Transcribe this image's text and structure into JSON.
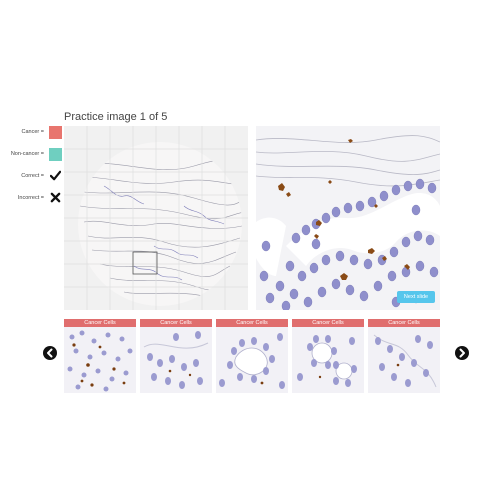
{
  "header": {
    "title": "Practice image 1 of 5"
  },
  "legend": {
    "cancer": {
      "label": "Cancer =",
      "color": "#e8756e",
      "icon": "cancer-swatch"
    },
    "non_cancer": {
      "label": "Non-cancer =",
      "color": "#6fcfc0",
      "icon": "non-cancer-swatch"
    },
    "correct": {
      "label": "Correct =",
      "icon": "checkmark-icon"
    },
    "incorrect": {
      "label": "Incorrect =",
      "icon": "cross-icon"
    }
  },
  "viewer": {
    "next_slide_label": "Next slide"
  },
  "thumbnails": [
    {
      "label": "Cancer Cells"
    },
    {
      "label": "Cancer Cells"
    },
    {
      "label": "Cancer Cells"
    },
    {
      "label": "Cancer Cells"
    },
    {
      "label": "Cancer Cells"
    }
  ],
  "navigation": {
    "prev_icon": "chevron-left-icon",
    "next_icon": "chevron-right-icon"
  },
  "colors": {
    "header_red": "#e06e6e",
    "button_blue": "#56c6ec",
    "stain_brown": "#8a4b16",
    "nuclei_blue": "#8f8fcc"
  }
}
